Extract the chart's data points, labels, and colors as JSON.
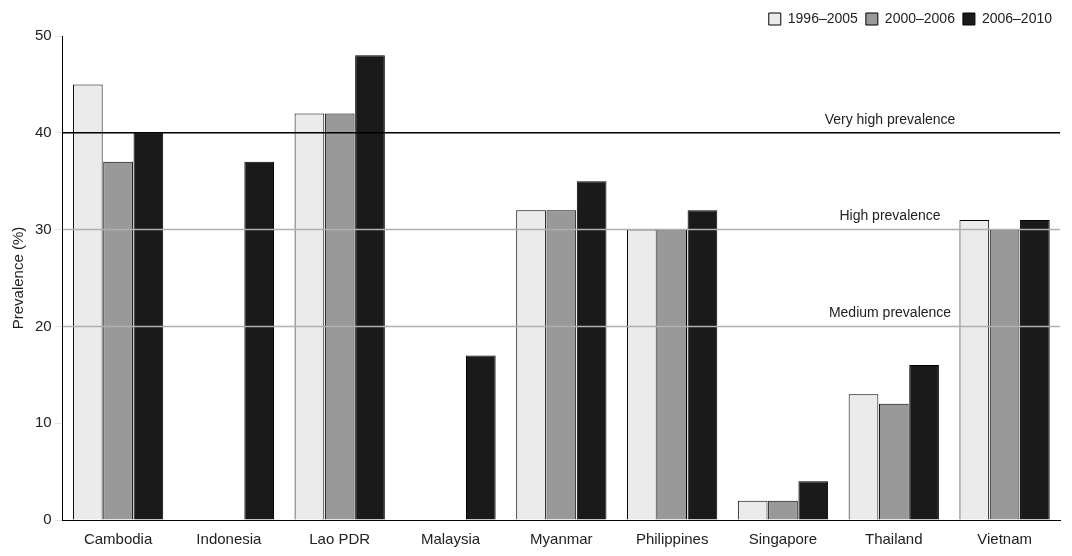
{
  "chart_data": {
    "type": "bar",
    "ylabel": "Prevalence (%)",
    "categories": [
      "Cambodia",
      "Indonesia",
      "Lao PDR",
      "Malaysia",
      "Myanmar",
      "Philippines",
      "Singapore",
      "Thailand",
      "Vietnam"
    ],
    "series": [
      {
        "name": "1996–2005",
        "color": "#ebebeb",
        "values": [
          45,
          null,
          42,
          null,
          32,
          30,
          2,
          13,
          31
        ]
      },
      {
        "name": "2000–2006",
        "color": "#999999",
        "values": [
          37,
          null,
          42,
          null,
          32,
          30,
          2,
          12,
          30
        ]
      },
      {
        "name": "2006–2010",
        "color": "#1a1a1a",
        "values": [
          40,
          37,
          48,
          17,
          35,
          32,
          4,
          16,
          31
        ]
      }
    ],
    "ylim": [
      0,
      50
    ],
    "yticks": [
      0,
      10,
      20,
      30,
      40,
      50
    ],
    "grid": false,
    "legend": "top right",
    "ref_lines": [
      {
        "axis": "y",
        "value": 40,
        "label": "Very high prevalence",
        "color": "#000000"
      },
      {
        "axis": "y",
        "value": 30,
        "label": "High prevalence",
        "color": "#b0b0b0"
      },
      {
        "axis": "y",
        "value": 20,
        "label": "Medium prevalence",
        "color": "#b0b0b0"
      }
    ]
  }
}
